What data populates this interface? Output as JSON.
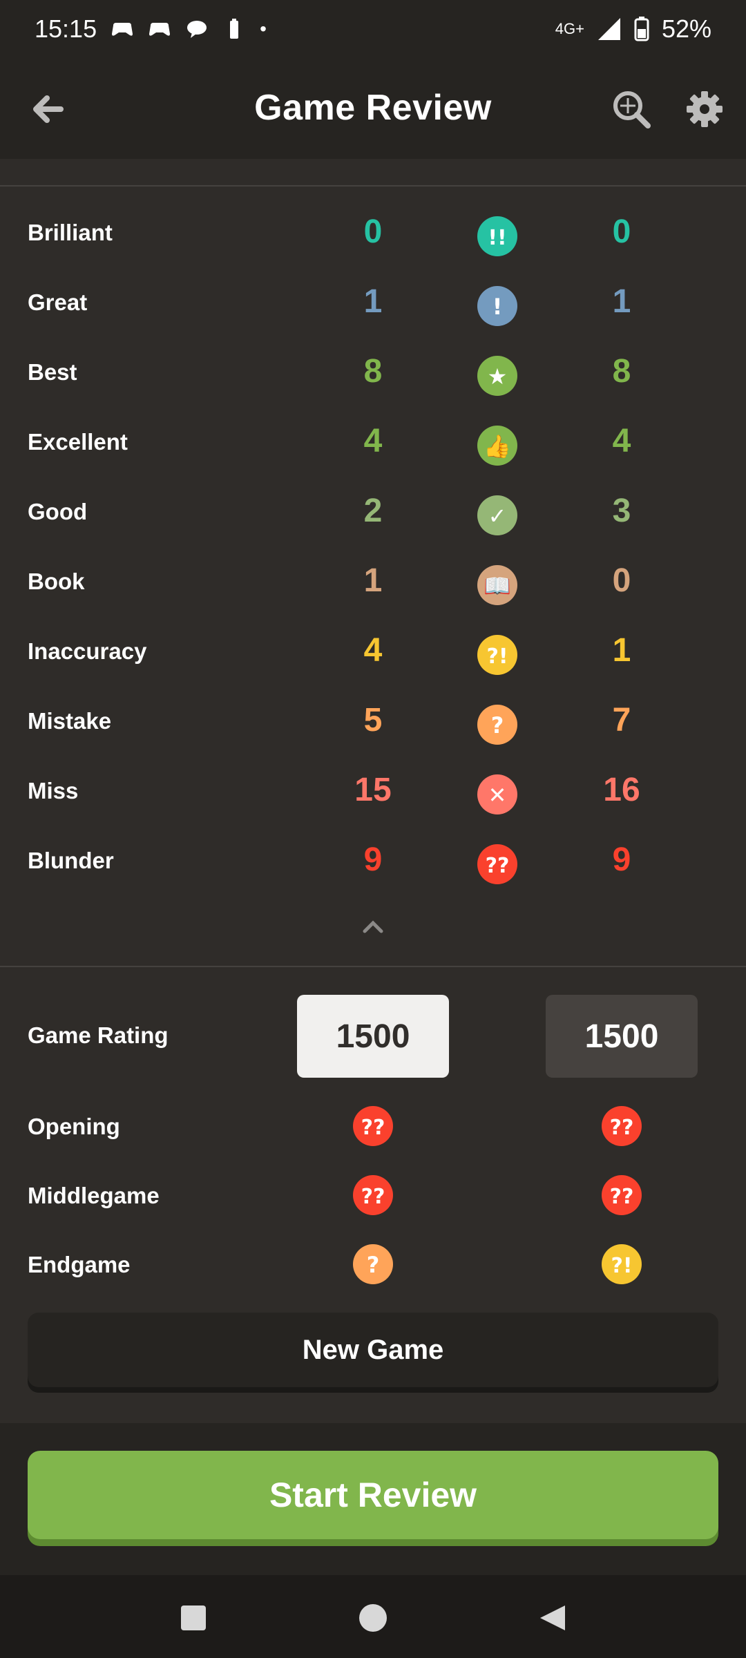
{
  "status_bar": {
    "time": "15:15",
    "network": "4G+",
    "battery": "52%"
  },
  "header": {
    "title": "Game Review"
  },
  "classifications": [
    {
      "label": "Brilliant",
      "white": "0",
      "black": "0",
      "color": "#26c2a3",
      "icon": "brilliant-icon",
      "glyph": "!!"
    },
    {
      "label": "Great",
      "white": "1",
      "black": "1",
      "color": "#749bbf",
      "icon": "great-icon",
      "glyph": "!"
    },
    {
      "label": "Best",
      "white": "8",
      "black": "8",
      "color": "#81b64c",
      "icon": "best-icon",
      "glyph": "★"
    },
    {
      "label": "Excellent",
      "white": "4",
      "black": "4",
      "color": "#81b64c",
      "icon": "excellent-icon",
      "glyph": "👍"
    },
    {
      "label": "Good",
      "white": "2",
      "black": "3",
      "color": "#95b776",
      "icon": "good-icon",
      "glyph": "✓"
    },
    {
      "label": "Book",
      "white": "1",
      "black": "0",
      "color": "#d5a47d",
      "icon": "book-icon",
      "glyph": "📖"
    },
    {
      "label": "Inaccuracy",
      "white": "4",
      "black": "1",
      "color": "#f7c631",
      "icon": "inaccuracy-icon",
      "glyph": "?!"
    },
    {
      "label": "Mistake",
      "white": "5",
      "black": "7",
      "color": "#ffa459",
      "icon": "mistake-icon",
      "glyph": "?"
    },
    {
      "label": "Miss",
      "white": "15",
      "black": "16",
      "color": "#ff7769",
      "icon": "miss-icon",
      "glyph": "✕"
    },
    {
      "label": "Blunder",
      "white": "9",
      "black": "9",
      "color": "#fa412d",
      "icon": "blunder-icon",
      "glyph": "??"
    }
  ],
  "rating": {
    "label": "Game Rating",
    "white": "1500",
    "black": "1500"
  },
  "phases": [
    {
      "label": "Opening",
      "white_glyph": "??",
      "white_color": "#fa412d",
      "black_glyph": "??",
      "black_color": "#fa412d"
    },
    {
      "label": "Middlegame",
      "white_glyph": "??",
      "white_color": "#fa412d",
      "black_glyph": "??",
      "black_color": "#fa412d"
    },
    {
      "label": "Endgame",
      "white_glyph": "?",
      "white_color": "#ffa459",
      "black_glyph": "?!",
      "black_color": "#f7c631"
    }
  ],
  "buttons": {
    "new_game": "New Game",
    "start_review": "Start Review"
  }
}
